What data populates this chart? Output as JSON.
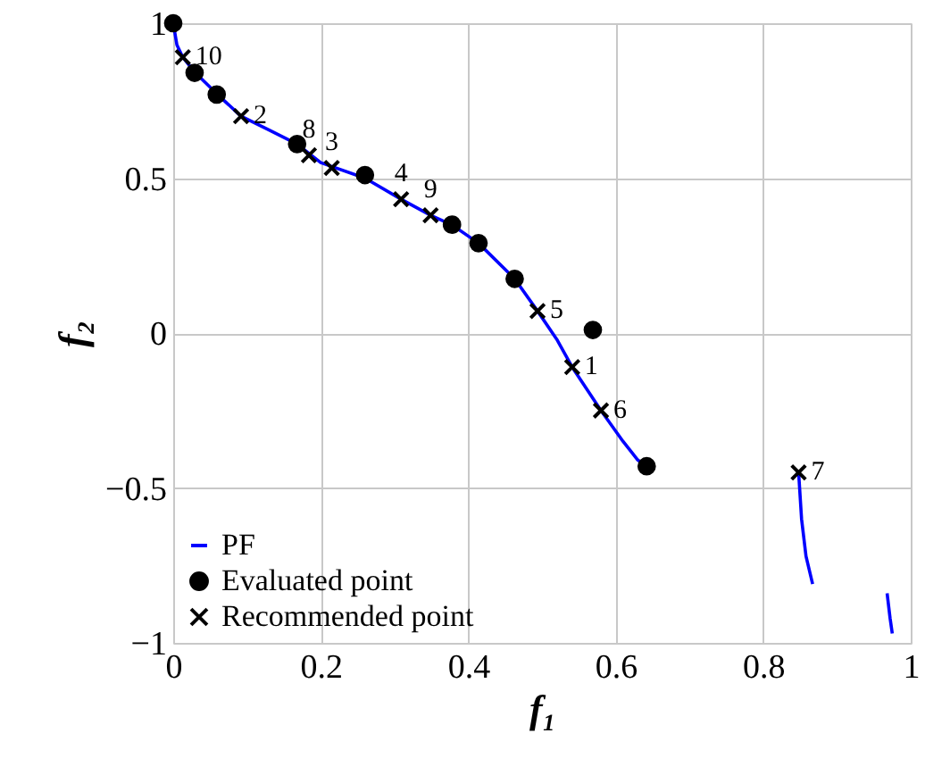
{
  "chart_data": {
    "type": "scatter",
    "xlabel": "f₁",
    "ylabel": "f₂",
    "xlim": [
      0,
      1
    ],
    "ylim": [
      -1,
      1
    ],
    "xticks": [
      0,
      0.2,
      0.4,
      0.6,
      0.8,
      1
    ],
    "yticks": [
      -1,
      -0.5,
      0,
      0.5,
      1
    ],
    "grid": true,
    "legend": "bottom left",
    "series": [
      {
        "name": "PF",
        "type": "line",
        "color": "#0000ff",
        "line_style": "solid",
        "marker": "none",
        "x": [
          0,
          0.005,
          0.013,
          0.03,
          0.06,
          0.092,
          0.13,
          0.168,
          0.2,
          0.26,
          0.309,
          0.349,
          0.378,
          0.414,
          0.463,
          0.494,
          0.52,
          0.541,
          0.58,
          0.61,
          0.63,
          0.642,
          null,
          0.848,
          0.852,
          0.858,
          0.867,
          null,
          0.968,
          0.972,
          0.975
        ],
        "values": [
          1,
          0.93,
          0.89,
          0.84,
          0.77,
          0.7,
          0.655,
          0.61,
          0.55,
          0.5,
          0.432,
          0.38,
          0.349,
          0.29,
          0.175,
          0.071,
          -0.02,
          -0.11,
          -0.25,
          -0.35,
          -0.41,
          -0.43,
          null,
          -0.45,
          -0.6,
          -0.72,
          -0.81,
          null,
          -0.84,
          -0.92,
          -0.97
        ]
      },
      {
        "name": "Evaluated point",
        "marker": "circle",
        "color": "#000000",
        "x": [
          0,
          0.029,
          0.059,
          0.168,
          0.26,
          0.378,
          0.414,
          0.463,
          0.569,
          0.642
        ],
        "values": [
          1,
          0.84,
          0.77,
          0.61,
          0.51,
          0.35,
          0.29,
          0.175,
          0.01,
          -0.43
        ]
      },
      {
        "name": "Recommended point",
        "marker": "cross",
        "color": "#000000",
        "x": [
          0.541,
          0.092,
          0.215,
          0.309,
          0.494,
          0.58,
          0.848,
          0.184,
          0.349,
          0.013
        ],
        "values": [
          -0.11,
          0.7,
          0.533,
          0.432,
          0.071,
          -0.25,
          -0.45,
          0.574,
          0.38,
          0.89
        ]
      }
    ],
    "annotations": [
      {
        "text": "1",
        "x": 0.541,
        "y": -0.11
      },
      {
        "text": "2",
        "x": 0.092,
        "y": 0.7
      },
      {
        "text": "3",
        "x": 0.215,
        "y": 0.533
      },
      {
        "text": "4",
        "x": 0.309,
        "y": 0.432
      },
      {
        "text": "5",
        "x": 0.494,
        "y": 0.071
      },
      {
        "text": "6",
        "x": 0.58,
        "y": -0.25
      },
      {
        "text": "7",
        "x": 0.848,
        "y": -0.45
      },
      {
        "text": "8",
        "x": 0.184,
        "y": 0.574
      },
      {
        "text": "9",
        "x": 0.349,
        "y": 0.38
      },
      {
        "text": "10",
        "x": 0.013,
        "y": 0.89
      }
    ]
  }
}
